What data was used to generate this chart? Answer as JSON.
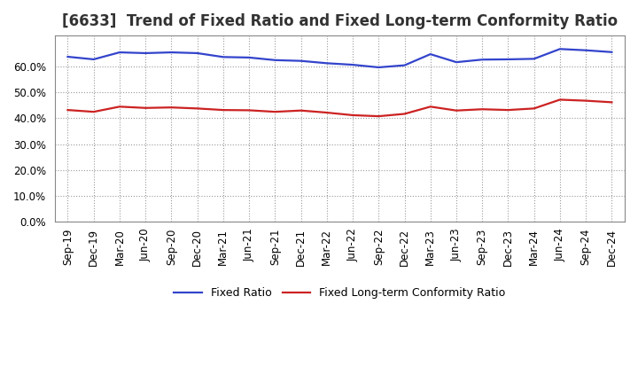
{
  "title": "[6633]  Trend of Fixed Ratio and Fixed Long-term Conformity Ratio",
  "x_labels": [
    "Sep-19",
    "Dec-19",
    "Mar-20",
    "Jun-20",
    "Sep-20",
    "Dec-20",
    "Mar-21",
    "Jun-21",
    "Sep-21",
    "Dec-21",
    "Mar-22",
    "Jun-22",
    "Sep-22",
    "Dec-22",
    "Mar-23",
    "Jun-23",
    "Sep-23",
    "Dec-23",
    "Mar-24",
    "Jun-24",
    "Sep-24",
    "Dec-24"
  ],
  "fixed_ratio": [
    0.638,
    0.628,
    0.655,
    0.652,
    0.655,
    0.652,
    0.637,
    0.635,
    0.625,
    0.622,
    0.613,
    0.607,
    0.597,
    0.605,
    0.648,
    0.617,
    0.627,
    0.628,
    0.63,
    0.668,
    0.663,
    0.656
  ],
  "fixed_lt_ratio": [
    0.432,
    0.425,
    0.445,
    0.44,
    0.442,
    0.438,
    0.432,
    0.431,
    0.425,
    0.43,
    0.422,
    0.412,
    0.408,
    0.417,
    0.445,
    0.43,
    0.435,
    0.432,
    0.438,
    0.472,
    0.468,
    0.462
  ],
  "fixed_ratio_color": "#3344cc",
  "fixed_lt_ratio_color": "#cc2222",
  "ylim": [
    0.0,
    0.72
  ],
  "yticks": [
    0.0,
    0.1,
    0.2,
    0.3,
    0.4,
    0.5,
    0.6
  ],
  "grid_color": "#999999",
  "background_color": "#ffffff",
  "plot_bg_color": "#ffffff",
  "legend_fixed": "Fixed Ratio",
  "legend_fixed_lt": "Fixed Long-term Conformity Ratio",
  "title_fontsize": 12,
  "tick_fontsize": 8.5
}
